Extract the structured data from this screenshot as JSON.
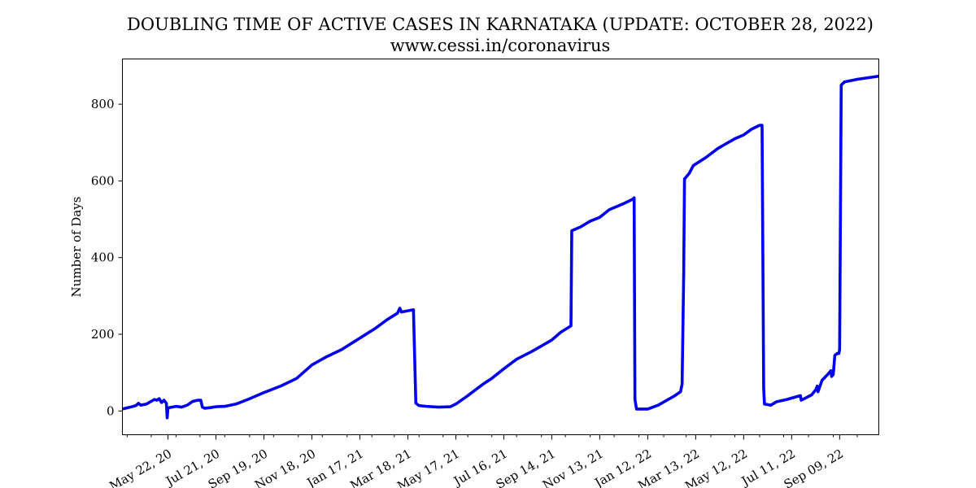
{
  "chart_data": {
    "type": "line",
    "title": "DOUBLING TIME OF ACTIVE CASES IN KARNATAKA (UPDATE: OCTOBER 28, 2022)",
    "subtitle": "www.cessi.in/coronavirus",
    "xlabel": "",
    "ylabel": "Number of Days",
    "xlim": [
      "2020-03-26",
      "2022-10-28"
    ],
    "ylim": [
      -62,
      918
    ],
    "yticks": [
      0,
      200,
      400,
      600,
      800
    ],
    "xtick_labels": [
      {
        "date": "2020-05-22",
        "label": "May 22, 20"
      },
      {
        "date": "2020-07-21",
        "label": "Jul 21, 20"
      },
      {
        "date": "2020-09-19",
        "label": "Sep 19, 20"
      },
      {
        "date": "2020-11-18",
        "label": "Nov 18, 20"
      },
      {
        "date": "2021-01-17",
        "label": "Jan 17, 21"
      },
      {
        "date": "2021-03-18",
        "label": "Mar 18, 21"
      },
      {
        "date": "2021-05-17",
        "label": "May 17, 21"
      },
      {
        "date": "2021-07-16",
        "label": "Jul 16, 21"
      },
      {
        "date": "2021-09-14",
        "label": "Sep 14, 21"
      },
      {
        "date": "2021-11-13",
        "label": "Nov 13, 21"
      },
      {
        "date": "2022-01-12",
        "label": "Jan 12, 22"
      },
      {
        "date": "2022-03-13",
        "label": "Mar 13, 22"
      },
      {
        "date": "2022-05-12",
        "label": "May 12, 22"
      },
      {
        "date": "2022-07-11",
        "label": "Jul 11, 22"
      },
      {
        "date": "2022-09-09",
        "label": "Sep 09, 22"
      }
    ],
    "grid": false,
    "series": [
      {
        "color": "#0000ee",
        "points": [
          [
            "2020-03-26",
            5
          ],
          [
            "2020-04-05",
            10
          ],
          [
            "2020-04-12",
            14
          ],
          [
            "2020-04-15",
            20
          ],
          [
            "2020-04-18",
            15
          ],
          [
            "2020-04-25",
            18
          ],
          [
            "2020-05-01",
            25
          ],
          [
            "2020-05-05",
            30
          ],
          [
            "2020-05-08",
            28
          ],
          [
            "2020-05-11",
            32
          ],
          [
            "2020-05-14",
            22
          ],
          [
            "2020-05-17",
            28
          ],
          [
            "2020-05-20",
            20
          ],
          [
            "2020-05-21",
            -18
          ],
          [
            "2020-05-22",
            8
          ],
          [
            "2020-06-01",
            12
          ],
          [
            "2020-06-08",
            10
          ],
          [
            "2020-06-15",
            15
          ],
          [
            "2020-06-22",
            25
          ],
          [
            "2020-06-28",
            28
          ],
          [
            "2020-07-02",
            28
          ],
          [
            "2020-07-04",
            10
          ],
          [
            "2020-07-07",
            7
          ],
          [
            "2020-07-15",
            9
          ],
          [
            "2020-07-21",
            11
          ],
          [
            "2020-08-01",
            12
          ],
          [
            "2020-08-15",
            18
          ],
          [
            "2020-08-30",
            30
          ],
          [
            "2020-09-19",
            48
          ],
          [
            "2020-10-10",
            65
          ],
          [
            "2020-10-30",
            85
          ],
          [
            "2020-11-18",
            120
          ],
          [
            "2020-12-05",
            140
          ],
          [
            "2020-12-25",
            160
          ],
          [
            "2021-01-17",
            190
          ],
          [
            "2021-02-05",
            215
          ],
          [
            "2021-02-20",
            238
          ],
          [
            "2021-03-05",
            255
          ],
          [
            "2021-03-08",
            268
          ],
          [
            "2021-03-10",
            258
          ],
          [
            "2021-03-20",
            262
          ],
          [
            "2021-03-25",
            264
          ],
          [
            "2021-03-28",
            20
          ],
          [
            "2021-04-01",
            14
          ],
          [
            "2021-04-10",
            12
          ],
          [
            "2021-04-25",
            10
          ],
          [
            "2021-05-10",
            11
          ],
          [
            "2021-05-17",
            18
          ],
          [
            "2021-06-01",
            40
          ],
          [
            "2021-06-20",
            70
          ],
          [
            "2021-07-01",
            85
          ],
          [
            "2021-07-16",
            110
          ],
          [
            "2021-08-01",
            135
          ],
          [
            "2021-08-20",
            155
          ],
          [
            "2021-09-14",
            185
          ],
          [
            "2021-09-25",
            205
          ],
          [
            "2021-10-08",
            222
          ],
          [
            "2021-10-09",
            470
          ],
          [
            "2021-10-20",
            480
          ],
          [
            "2021-11-01",
            495
          ],
          [
            "2021-11-13",
            505
          ],
          [
            "2021-11-25",
            525
          ],
          [
            "2021-12-12",
            540
          ],
          [
            "2021-12-24",
            552
          ],
          [
            "2021-12-26",
            556
          ],
          [
            "2021-12-27",
            30
          ],
          [
            "2021-12-29",
            5
          ],
          [
            "2022-01-12",
            5
          ],
          [
            "2022-01-25",
            15
          ],
          [
            "2022-02-05",
            28
          ],
          [
            "2022-02-15",
            40
          ],
          [
            "2022-02-22",
            50
          ],
          [
            "2022-02-24",
            70
          ],
          [
            "2022-02-26",
            360
          ],
          [
            "2022-02-27",
            605
          ],
          [
            "2022-03-05",
            620
          ],
          [
            "2022-03-10",
            640
          ],
          [
            "2022-03-25",
            660
          ],
          [
            "2022-04-10",
            685
          ],
          [
            "2022-05-01",
            710
          ],
          [
            "2022-05-12",
            720
          ],
          [
            "2022-05-22",
            735
          ],
          [
            "2022-06-01",
            745
          ],
          [
            "2022-06-04",
            745
          ],
          [
            "2022-06-06",
            60
          ],
          [
            "2022-06-07",
            18
          ],
          [
            "2022-06-15",
            15
          ],
          [
            "2022-06-22",
            24
          ],
          [
            "2022-07-05",
            30
          ],
          [
            "2022-07-22",
            40
          ],
          [
            "2022-07-23",
            28
          ],
          [
            "2022-08-05",
            42
          ],
          [
            "2022-08-10",
            55
          ],
          [
            "2022-08-12",
            65
          ],
          [
            "2022-08-13",
            50
          ],
          [
            "2022-08-18",
            80
          ],
          [
            "2022-08-25",
            95
          ],
          [
            "2022-08-29",
            105
          ],
          [
            "2022-08-30",
            90
          ],
          [
            "2022-09-01",
            95
          ],
          [
            "2022-09-03",
            145
          ],
          [
            "2022-09-06",
            150
          ],
          [
            "2022-09-08",
            150
          ],
          [
            "2022-09-09",
            160
          ],
          [
            "2022-09-11",
            850
          ],
          [
            "2022-09-15",
            858
          ],
          [
            "2022-10-01",
            865
          ],
          [
            "2022-10-28",
            873
          ]
        ]
      }
    ]
  }
}
